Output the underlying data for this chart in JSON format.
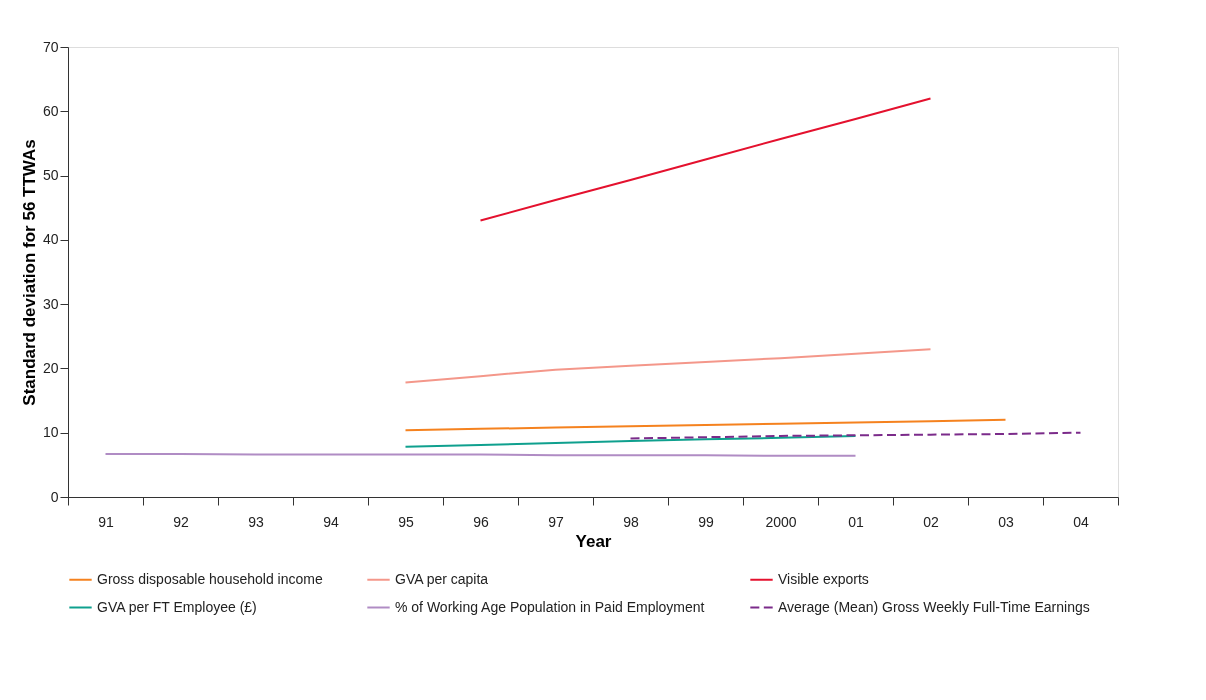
{
  "chart_data": {
    "type": "line",
    "xlabel": "Year",
    "ylabel": "Standard deviation for 56 TTWAs",
    "categories": [
      "91",
      "92",
      "93",
      "94",
      "95",
      "96",
      "97",
      "98",
      "99",
      "2000",
      "01",
      "02",
      "03",
      "04"
    ],
    "ylim": [
      0,
      70
    ],
    "yticks": [
      0,
      10,
      20,
      30,
      40,
      50,
      60,
      70
    ],
    "grid": false,
    "legend": "bottom",
    "marker": "none",
    "series": [
      {
        "name": "Gross disposable household income",
        "color": "#f5821f",
        "line_style": "solid",
        "values": [
          null,
          null,
          null,
          null,
          10.4,
          10.6,
          10.8,
          11.0,
          11.2,
          11.4,
          11.6,
          11.8,
          12.0,
          null
        ]
      },
      {
        "name": "GVA per capita",
        "color": "#f4978a",
        "line_style": "solid",
        "values": [
          null,
          null,
          null,
          null,
          17.8,
          18.8,
          19.8,
          20.4,
          21.0,
          21.6,
          22.3,
          23.0,
          null,
          null
        ]
      },
      {
        "name": "Visible exports",
        "color": "#e4112e",
        "line_style": "solid",
        "values": [
          null,
          null,
          null,
          null,
          null,
          43.0,
          46.2,
          49.3,
          52.5,
          55.7,
          58.8,
          62.0,
          null,
          null
        ]
      },
      {
        "name": "GVA per FT Employee (£)",
        "color": "#0fa08e",
        "line_style": "solid",
        "values": [
          null,
          null,
          null,
          null,
          7.8,
          8.1,
          8.4,
          8.7,
          9.0,
          9.2,
          9.5,
          null,
          null,
          null
        ]
      },
      {
        "name": "% of Working Age Population in Paid Employment",
        "color": "#b08cc4",
        "line_style": "solid",
        "values": [
          6.7,
          6.7,
          6.6,
          6.6,
          6.6,
          6.6,
          6.5,
          6.5,
          6.5,
          6.4,
          6.4,
          null,
          null,
          null
        ]
      },
      {
        "name": "Average (Mean) Gross Weekly Full-Time Earnings",
        "color": "#7b2b8a",
        "line_style": "dashed",
        "values": [
          null,
          null,
          null,
          null,
          null,
          null,
          null,
          9.1,
          9.3,
          9.5,
          9.6,
          9.7,
          9.8,
          10.0
        ]
      }
    ]
  }
}
